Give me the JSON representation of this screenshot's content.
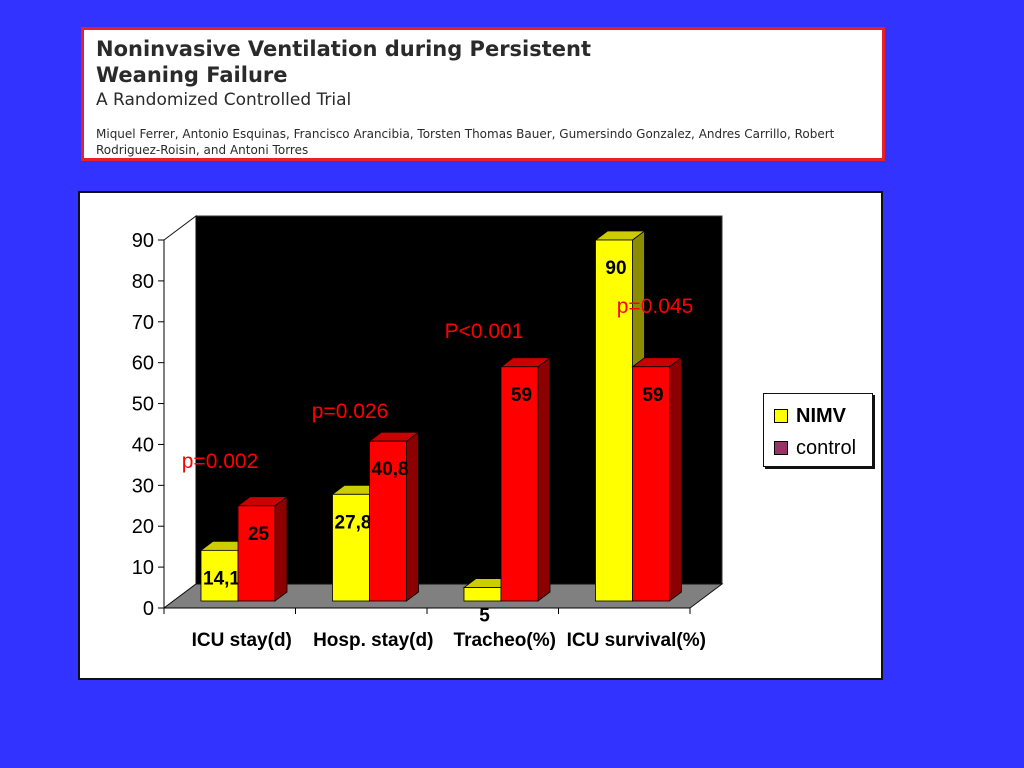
{
  "header": {
    "title": "Noninvasive Ventilation during Persistent\nWeaning Failure",
    "subtitle": "A Randomized Controlled Trial",
    "authors": "Miquel Ferrer, Antonio Esquinas, Francisco Arancibia, Torsten Thomas Bauer, Gumersindo Gonzalez, Andres Carrillo, Robert Rodriguez-Roisin, and Antoni Torres"
  },
  "chart_data": {
    "type": "bar",
    "categories": [
      "ICU stay(d)",
      "Hosp. stay(d)",
      "Tracheo(%)",
      "ICU survival(%)"
    ],
    "series": [
      {
        "name": "NIMV",
        "values": [
          14.1,
          27.8,
          5,
          90
        ],
        "labels": [
          "14,1",
          "27,8",
          "5",
          "90"
        ],
        "color": "#ffff00"
      },
      {
        "name": "control",
        "values": [
          25,
          40.8,
          59,
          59
        ],
        "labels": [
          "25",
          "40,8",
          "59",
          "59"
        ],
        "color": "#ff0000"
      }
    ],
    "legend_swatch_colors": [
      "#ffff00",
      "#993366"
    ],
    "annotations": [
      "p=0.002",
      "p=0.026",
      "P<0.001",
      "p=0.045"
    ],
    "annotation_color": "#ff0000",
    "ylim": [
      0,
      90
    ],
    "yticks": [
      0,
      10,
      20,
      30,
      40,
      50,
      60,
      70,
      80,
      90
    ],
    "plot_background": "#000000",
    "floor_color": "#808080",
    "legend_position": "right",
    "grid": false
  }
}
